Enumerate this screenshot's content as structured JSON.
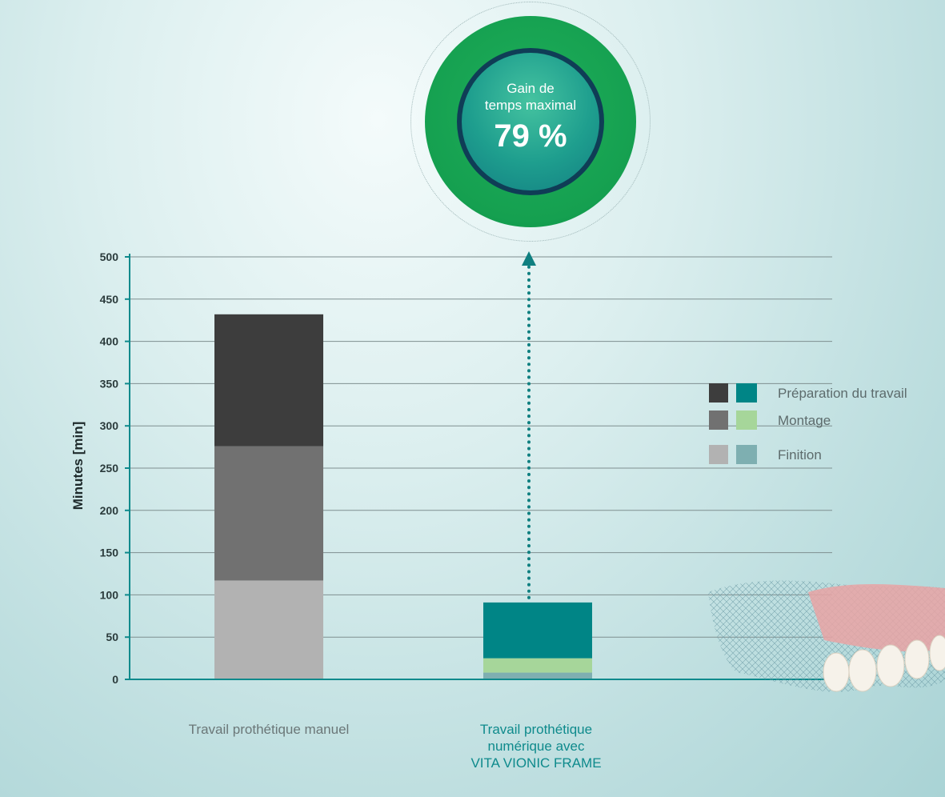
{
  "chart_data": {
    "type": "bar",
    "stacked": true,
    "title": "",
    "xlabel": "",
    "ylabel": "Minutes [min]",
    "ylim": [
      0,
      500
    ],
    "yticks": [
      0,
      50,
      100,
      150,
      200,
      250,
      300,
      350,
      400,
      450,
      500
    ],
    "grid": true,
    "categories": [
      "Travail prothétique manuel",
      "Travail prothétique numérique avec VITA VIONIC FRAME"
    ],
    "category_lines": [
      [
        "Travail prothétique manuel"
      ],
      [
        "Travail prothétique",
        "numérique avec",
        "VITA VIONIC FRAME"
      ]
    ],
    "series": [
      {
        "name": "Finition",
        "values": [
          117,
          8
        ],
        "colors": [
          "#b2b2b2",
          "#7eafb1"
        ]
      },
      {
        "name": "Montage",
        "values": [
          159,
          17
        ],
        "colors": [
          "#717171",
          "#a6d69a"
        ]
      },
      {
        "name": "Préparation du travail",
        "values": [
          156,
          66
        ],
        "colors": [
          "#3d3d3d",
          "#008586"
        ]
      }
    ],
    "legend": {
      "position": "right",
      "items": [
        "Préparation du travail",
        "Montage",
        "Finition"
      ]
    }
  },
  "badge": {
    "caption_line1": "Gain de",
    "caption_line2": "temps maximal",
    "value": "79 %",
    "colors": {
      "outer": "#16a253",
      "inner": "#0f3d56",
      "core": "#1e9e8e"
    }
  },
  "colors": {
    "axis": "#0e8a8c",
    "grid": "#7f8f90",
    "arrow": "#0f7f80"
  }
}
